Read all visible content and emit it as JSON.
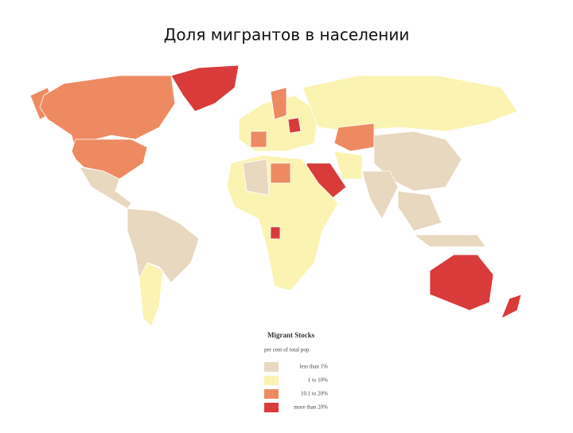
{
  "title": "Доля мигрантов в населении",
  "legend": {
    "title": "Migrant Stocks",
    "subtitle": "per cent of total pop.",
    "items": [
      {
        "label": "less than 1%",
        "color": "#e8d8bf"
      },
      {
        "label": "1 to 10%",
        "color": "#fbf3b2"
      },
      {
        "label": "10.1 to 20%",
        "color": "#ee8a62"
      },
      {
        "label": "more than 20%",
        "color": "#d93b3b"
      }
    ]
  }
}
